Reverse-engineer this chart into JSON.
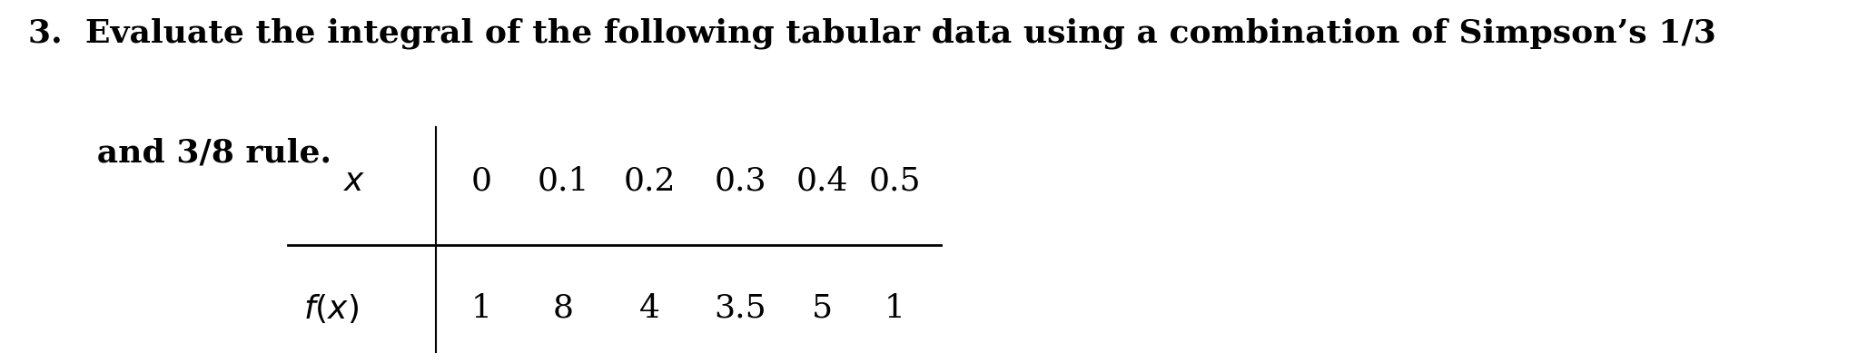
{
  "background_color": "#ffffff",
  "text_line1": "3.  Evaluate the integral of the following tabular data using a combination of Simpson’s 1/3",
  "text_line2": "      and 3/8 rule.",
  "table_x_label": "$x$",
  "table_fx_label": "$f(x)$",
  "x_values": [
    "0",
    "0.1",
    "0.2",
    "0.3",
    "0.4",
    "0.5"
  ],
  "fx_values": [
    "1",
    "8",
    "4",
    "3.5",
    "5",
    "1"
  ],
  "font_size_text": 26,
  "font_size_table": 26,
  "font_family": "DejaVu Serif"
}
